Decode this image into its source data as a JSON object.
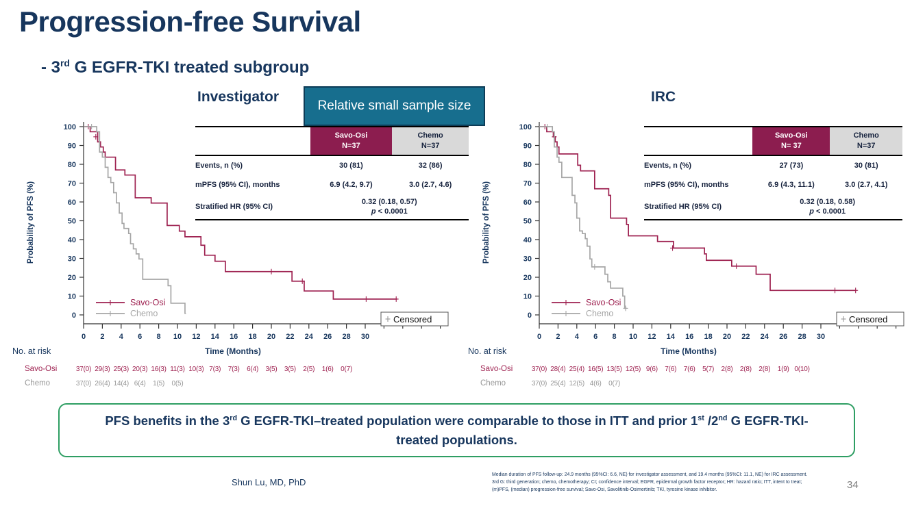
{
  "slide": {
    "title": "Progression-free Survival",
    "subtitle_prefix": "- 3",
    "subtitle_sup": "rd",
    "subtitle_rest": " G EGFR-TKI treated subgroup",
    "callout": "Relative small sample size",
    "presenter": "Shun Lu, MD, PhD",
    "page_number": "34",
    "footnote_line1": "Median duration of PFS follow-up: 24.9 months (95%CI: 6.6, NE) for investigator assessment, and 19.4 months (95%CI: 11.1, NE) for IRC assessment.",
    "footnote_line2": "3rd G: third generation; chemo, chemotherapy; CI; confidence interval; EGFR, epidermal growth factor receptor; HR: hazard ratio; ITT, intent to treat; (m)PFS, (median) progression-free survival; Savo-Osi, Savolitinib-Osimertinib; TKI, tyrosine kinase inhibitor.",
    "conclusion": {
      "p1": "PFS benefits in the 3",
      "s1": "rd",
      "p2": " G EGFR-TKI–treated population were comparable to those in ITT and prior 1",
      "s2": "st",
      "p3": " /2",
      "s3": "nd",
      "p4": " G EGFR-TKI-treated populations."
    },
    "colors": {
      "navy": "#17365D",
      "savo_maroon": "#9E2150",
      "savo_header_bg": "#8C1D4F",
      "chemo_gray": "#A6A6A6",
      "teal_callout": "#176E8E",
      "green_border": "#2E9E63"
    }
  },
  "chart_data": [
    {
      "type": "line",
      "id": "investigator",
      "heading": "Investigator",
      "xlabel": "Time (Months)",
      "ylabel": "Probability of PFS (%)",
      "xlim": [
        0,
        34
      ],
      "ylim": [
        0,
        100
      ],
      "xticks": [
        0,
        2,
        4,
        6,
        8,
        10,
        12,
        14,
        16,
        18,
        20,
        22,
        24,
        26,
        28,
        30
      ],
      "xticks_minor": [
        32,
        34,
        36,
        38
      ],
      "yticks": [
        0,
        10,
        20,
        30,
        40,
        50,
        60,
        70,
        80,
        90,
        100
      ],
      "censored_label": "Censored",
      "series": [
        {
          "name": "Savo-Osi",
          "color": "#9E2150",
          "end_x": 33.4,
          "steps": [
            [
              0,
              100
            ],
            [
              0.7,
              97.3
            ],
            [
              1.5,
              91.9
            ],
            [
              1.8,
              89.2
            ],
            [
              2.1,
              86.5
            ],
            [
              2.3,
              83.8
            ],
            [
              3.4,
              77
            ],
            [
              4.4,
              74.3
            ],
            [
              5.5,
              62.2
            ],
            [
              7.2,
              59.4
            ],
            [
              8.9,
              47.5
            ],
            [
              10.2,
              44.5
            ],
            [
              10.8,
              41.5
            ],
            [
              12.5,
              37
            ],
            [
              12.9,
              31.7
            ],
            [
              14,
              28.5
            ],
            [
              15.1,
              23
            ],
            [
              22.2,
              17.9
            ],
            [
              23.5,
              12.7
            ],
            [
              26.6,
              8.4
            ]
          ],
          "censors": [
            [
              0.5,
              100
            ],
            [
              1.3,
              94.6
            ],
            [
              20,
              23
            ],
            [
              23.3,
              17.9
            ],
            [
              30.1,
              8.4
            ],
            [
              33.3,
              8.4
            ]
          ]
        },
        {
          "name": "Chemo",
          "color": "#A6A6A6",
          "end_x": 10.9,
          "steps": [
            [
              0,
              100
            ],
            [
              1.4,
              97.3
            ],
            [
              1.7,
              86.5
            ],
            [
              2,
              83.8
            ],
            [
              2.3,
              78.4
            ],
            [
              2.6,
              73
            ],
            [
              2.9,
              70.3
            ],
            [
              3.2,
              64.9
            ],
            [
              3.5,
              59.5
            ],
            [
              3.8,
              54.1
            ],
            [
              4.1,
              48.6
            ],
            [
              4.3,
              45.9
            ],
            [
              4.8,
              43.2
            ],
            [
              5,
              37.8
            ],
            [
              5.3,
              35.1
            ],
            [
              5.6,
              32.4
            ],
            [
              5.9,
              29.7
            ],
            [
              6.3,
              18.9
            ],
            [
              9,
              15.5
            ],
            [
              9.3,
              6.2
            ],
            [
              10.8,
              0.8
            ]
          ],
          "censors": [
            [
              0.85,
              100
            ]
          ]
        }
      ],
      "stats": {
        "columns": [
          {
            "name": "Savo-Osi",
            "n": "N=37"
          },
          {
            "name": "Chemo",
            "n": "N=37"
          }
        ],
        "rows": [
          {
            "label": "Events, n (%)",
            "savo": "30 (81)",
            "chemo": "32 (86)"
          },
          {
            "label": "mPFS (95% CI), months",
            "savo": "6.9 (4.2, 9.7)",
            "chemo": "3.0 (2.7, 4.6)"
          }
        ],
        "hr_label": "Stratified HR (95% CI)",
        "hr_value": "0.32 (0.18, 0.57)",
        "p_label": "p",
        "p_rest": " < 0.0001"
      },
      "risk": {
        "title": "No. at risk",
        "rows": [
          {
            "name": "Savo-Osi",
            "color": "#9E2150",
            "values": [
              "37(0)",
              "29(3)",
              "25(3)",
              "20(3)",
              "16(3)",
              "11(3)",
              "10(3)",
              "7(3)",
              "7(3)",
              "6(4)",
              "3(5)",
              "3(5)",
              "2(5)",
              "1(6)",
              "0(7)"
            ]
          },
          {
            "name": "Chemo",
            "color": "#969696",
            "values": [
              "37(0)",
              "26(4)",
              "14(4)",
              "6(4)",
              "1(5)",
              "0(5)"
            ]
          }
        ]
      }
    },
    {
      "type": "line",
      "id": "irc",
      "heading": "IRC",
      "xlabel": "Time (Months)",
      "ylabel": "Probability of PFS (%)",
      "xlim": [
        0,
        34
      ],
      "ylim": [
        0,
        100
      ],
      "xticks": [
        0,
        2,
        4,
        6,
        8,
        10,
        12,
        14,
        16,
        18,
        20,
        22,
        24,
        26,
        28,
        30
      ],
      "xticks_minor": [
        32,
        34,
        36,
        38
      ],
      "yticks": [
        0,
        10,
        20,
        30,
        40,
        50,
        60,
        70,
        80,
        90,
        100
      ],
      "censored_label": "Censored",
      "series": [
        {
          "name": "Savo-Osi",
          "color": "#9E2150",
          "end_x": 33.8,
          "steps": [
            [
              0,
              100
            ],
            [
              0.8,
              97.3
            ],
            [
              1.5,
              94.6
            ],
            [
              1.7,
              91.9
            ],
            [
              1.9,
              89.2
            ],
            [
              2.1,
              85.5
            ],
            [
              4.1,
              79.5
            ],
            [
              4.4,
              76.5
            ],
            [
              5.9,
              67
            ],
            [
              7.4,
              63.5
            ],
            [
              7.6,
              51.4
            ],
            [
              9.3,
              48
            ],
            [
              9.5,
              42
            ],
            [
              12.6,
              39
            ],
            [
              14.3,
              35.5
            ],
            [
              17.6,
              32.4
            ],
            [
              17.8,
              29
            ],
            [
              20.5,
              25.9
            ],
            [
              23.1,
              21.6
            ],
            [
              24.6,
              13
            ]
          ],
          "censors": [
            [
              0.6,
              100
            ],
            [
              1.6,
              94.6
            ],
            [
              14.2,
              35.5
            ],
            [
              21,
              25.9
            ],
            [
              31.5,
              13
            ],
            [
              33.7,
              13
            ]
          ]
        },
        {
          "name": "Chemo",
          "color": "#A6A6A6",
          "end_x": 9.3,
          "steps": [
            [
              0,
              100
            ],
            [
              1.4,
              97.3
            ],
            [
              1.6,
              89.2
            ],
            [
              1.9,
              83.8
            ],
            [
              2.1,
              81.1
            ],
            [
              2.4,
              73
            ],
            [
              3.5,
              63.5
            ],
            [
              3.8,
              59.5
            ],
            [
              4,
              51.4
            ],
            [
              4.3,
              44.6
            ],
            [
              4.6,
              43.2
            ],
            [
              4.9,
              40.5
            ],
            [
              5.1,
              36.5
            ],
            [
              5.4,
              29.7
            ],
            [
              5.6,
              25.5
            ],
            [
              7,
              21.6
            ],
            [
              7.3,
              17.6
            ],
            [
              7.6,
              14.2
            ],
            [
              8.9,
              10
            ],
            [
              9.1,
              3.5
            ]
          ],
          "censors": [
            [
              0.85,
              100
            ],
            [
              5.9,
              25.5
            ],
            [
              9.2,
              3.5
            ]
          ]
        }
      ],
      "stats": {
        "columns": [
          {
            "name": "Savo-Osi",
            "n": "N= 37"
          },
          {
            "name": "Chemo",
            "n": "N=37"
          }
        ],
        "rows": [
          {
            "label": "Events, n (%)",
            "savo": "27 (73)",
            "chemo": "30 (81)"
          },
          {
            "label": "mPFS (95% CI), months",
            "savo": "6.9 (4.3, 11.1)",
            "chemo": "3.0 (2.7, 4.1)"
          }
        ],
        "hr_label": "Stratified HR (95% CI)",
        "hr_value": "0.32 (0.18, 0.58)",
        "p_label": "p",
        "p_rest": " < 0.0001"
      },
      "risk": {
        "title": "No. at risk",
        "rows": [
          {
            "name": "Savo-Osi",
            "color": "#9E2150",
            "values": [
              "37(0)",
              "28(4)",
              "25(4)",
              "16(5)",
              "13(5)",
              "12(5)",
              "9(6)",
              "7(6)",
              "7(6)",
              "5(7)",
              "2(8)",
              "2(8)",
              "2(8)",
              "1(9)",
              "0(10)"
            ]
          },
          {
            "name": "Chemo",
            "color": "#969696",
            "values": [
              "37(0)",
              "25(4)",
              "12(5)",
              "4(6)",
              "0(7)"
            ]
          }
        ]
      }
    }
  ]
}
